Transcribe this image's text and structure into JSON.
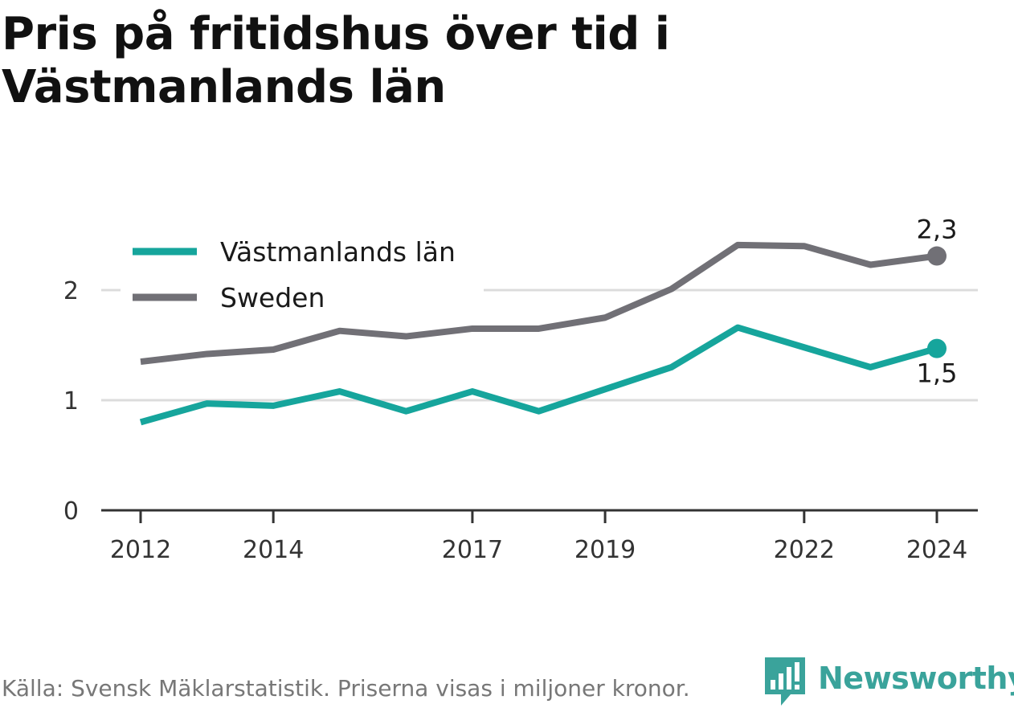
{
  "title": "Pris på fritidshus över tid i Västmanlands län",
  "source": "Källa: Svensk Mäklarstatistik. Priserna visas i miljoner kronor.",
  "brand": {
    "name": "Newsworthy",
    "icon": "newsworthy-logo-icon",
    "color": "#3aa39b"
  },
  "chart_data": {
    "type": "line",
    "title": "Pris på fritidshus över tid i Västmanlands län",
    "xlabel": "",
    "ylabel": "",
    "x": [
      2012,
      2013,
      2014,
      2015,
      2016,
      2017,
      2018,
      2019,
      2020,
      2021,
      2022,
      2023,
      2024
    ],
    "x_ticks": [
      "2012",
      "2014",
      "2017",
      "2019",
      "2022",
      "2024"
    ],
    "x_tick_values": [
      2012,
      2014,
      2017,
      2019,
      2022,
      2024
    ],
    "y_ticks": [
      "0",
      "1",
      "2"
    ],
    "y_tick_values": [
      0,
      1,
      2
    ],
    "ylim": [
      0,
      2.3
    ],
    "xlim": [
      2011.4,
      2024.6
    ],
    "grid": "horizontal",
    "legend_position": "top-left",
    "series": [
      {
        "name": "Västmanlands län",
        "color": "#16a59c",
        "values": [
          0.8,
          0.97,
          0.95,
          1.08,
          0.9,
          1.08,
          0.9,
          1.1,
          1.3,
          1.66,
          1.48,
          1.3,
          1.47
        ],
        "end_label": "1,5"
      },
      {
        "name": "Sweden",
        "color": "#717076",
        "values": [
          1.35,
          1.42,
          1.46,
          1.63,
          1.58,
          1.65,
          1.65,
          1.75,
          2.01,
          2.41,
          2.4,
          2.23,
          2.31
        ],
        "end_label": "2,3"
      }
    ]
  }
}
